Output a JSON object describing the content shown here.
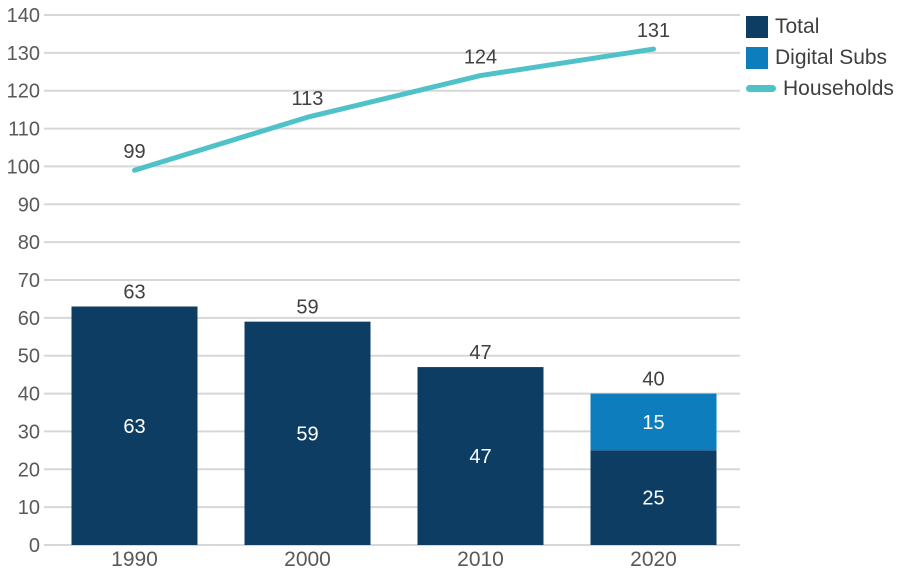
{
  "chart_data": {
    "type": "bar+line",
    "title": "",
    "xlabel": "",
    "ylabel": "",
    "categories": [
      "1990",
      "2000",
      "2010",
      "2020"
    ],
    "series": [
      {
        "name": "Total",
        "type": "bar",
        "color": "#0d3d63",
        "values": [
          63,
          59,
          47,
          25
        ],
        "inner_labels": [
          "63",
          "59",
          "47",
          "25"
        ]
      },
      {
        "name": "Digital Subs",
        "type": "bar",
        "color": "#0e7dbe",
        "values": [
          0,
          0,
          0,
          15
        ],
        "inner_labels": [
          "",
          "",
          "",
          "15"
        ]
      },
      {
        "name": "Households",
        "type": "line",
        "color": "#4fc2c9",
        "values": [
          99,
          113,
          124,
          131
        ],
        "point_labels": [
          "99",
          "113",
          "124",
          "131"
        ]
      }
    ],
    "stack_total_labels": [
      "63",
      "59",
      "47",
      "40"
    ],
    "y_axis": {
      "min": 0,
      "max": 140,
      "step": 10,
      "tick_labels": [
        "0",
        "10",
        "20",
        "30",
        "40",
        "50",
        "60",
        "70",
        "80",
        "90",
        "100",
        "110",
        "120",
        "130",
        "140"
      ]
    },
    "grid": true,
    "legend": {
      "position": "top-right",
      "entries": [
        {
          "label": "Total",
          "swatch": "square",
          "color": "#0d3d63"
        },
        {
          "label": "Digital Subs",
          "swatch": "square",
          "color": "#0e7dbe"
        },
        {
          "label": "Households",
          "swatch": "line",
          "color": "#4fc2c9"
        }
      ]
    },
    "colors": {
      "background": "#ffffff",
      "grid": "#d7d7d7",
      "axis_text": "#595959",
      "data_label": "#404040",
      "inner_label": "#ffffff"
    }
  }
}
